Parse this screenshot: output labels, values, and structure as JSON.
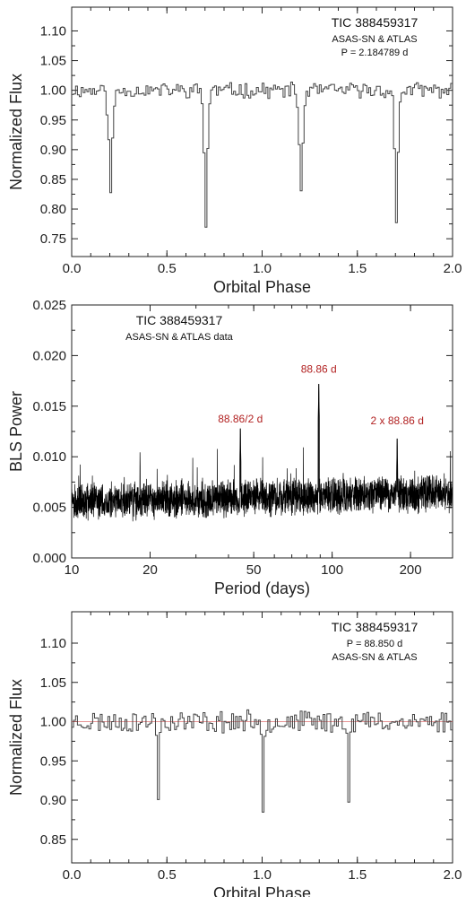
{
  "chart_data": [
    {
      "type": "line",
      "style": "step",
      "title": "TIC 388459317",
      "subtitle_lines": [
        "ASAS-SN & ATLAS",
        "P = 2.184789 d"
      ],
      "xlabel": "Orbital Phase",
      "ylabel": "Normalized Flux",
      "xlim": [
        0.0,
        2.0
      ],
      "ylim": [
        0.72,
        1.14
      ],
      "xticks": [
        0.0,
        0.5,
        1.0,
        1.5,
        2.0
      ],
      "xtick_labels": [
        "0.0",
        "0.5",
        "1.0",
        "1.5",
        "2.0"
      ],
      "yticks": [
        0.75,
        0.8,
        0.85,
        0.9,
        0.95,
        1.0,
        1.05,
        1.1
      ],
      "ytick_labels": [
        "0.75",
        "0.80",
        "0.85",
        "0.90",
        "0.95",
        "1.00",
        "1.05",
        "1.10"
      ],
      "grid": false,
      "line_color": "#444444",
      "baseline": 1.0,
      "noise": 0.011,
      "bins": 200,
      "seed": 11,
      "eclipses": [
        {
          "phase": 0.205,
          "depth": 0.83,
          "width": 0.03
        },
        {
          "phase": 0.705,
          "depth": 0.77,
          "width": 0.025
        },
        {
          "phase": 1.205,
          "depth": 0.83,
          "width": 0.03
        },
        {
          "phase": 1.705,
          "depth": 0.77,
          "width": 0.025
        }
      ],
      "annotations": []
    },
    {
      "type": "line",
      "style": "periodogram",
      "title": "TIC 388459317",
      "subtitle_lines": [
        "ASAS-SN & ATLAS data"
      ],
      "xlabel": "Period (days)",
      "ylabel": "BLS Power",
      "xscale": "log",
      "xlim": [
        10,
        290
      ],
      "ylim": [
        0.0,
        0.025
      ],
      "xticks": [
        10,
        20,
        50,
        100,
        200
      ],
      "xtick_labels": [
        "10",
        "20",
        "50",
        "100",
        "200"
      ],
      "yticks": [
        0.0,
        0.005,
        0.01,
        0.015,
        0.02,
        0.025
      ],
      "ytick_labels": [
        "0.000",
        "0.005",
        "0.010",
        "0.015",
        "0.020",
        "0.025"
      ],
      "grid": false,
      "line_color": "#000000",
      "seed": 5,
      "samples": 2600,
      "peaks": [
        {
          "period": 44.43,
          "power": 0.0128
        },
        {
          "period": 88.86,
          "power": 0.0172
        },
        {
          "period": 177.7,
          "power": 0.0118
        }
      ],
      "annotations": [
        {
          "text": "88.86/2 d",
          "period": 44.43,
          "power": 0.0134
        },
        {
          "text": "88.86 d",
          "period": 88.86,
          "power": 0.0183
        },
        {
          "text": "2 x 88.86 d",
          "period": 177.7,
          "power": 0.0132
        }
      ],
      "annotation_color": "#b22222"
    },
    {
      "type": "line",
      "style": "step",
      "title": "TIC 388459317",
      "subtitle_lines": [
        "P = 88.850 d",
        "ASAS-SN & ATLAS"
      ],
      "xlabel": "Orbital Phase",
      "ylabel": "Normalized Flux",
      "xlim": [
        0.0,
        2.0
      ],
      "ylim": [
        0.82,
        1.14
      ],
      "xticks": [
        0.0,
        0.5,
        1.0,
        1.5,
        2.0
      ],
      "xtick_labels": [
        "0.0",
        "0.5",
        "1.0",
        "1.5",
        "2.0"
      ],
      "yticks": [
        0.85,
        0.9,
        0.95,
        1.0,
        1.05,
        1.1
      ],
      "ytick_labels": [
        "0.85",
        "0.90",
        "0.95",
        "1.00",
        "1.05",
        "1.10"
      ],
      "grid": false,
      "line_color": "#444444",
      "baseline": 1.0,
      "noise": 0.012,
      "bins": 200,
      "seed": 23,
      "reference_line": {
        "y": 1.0,
        "color": "#e07070"
      },
      "eclipses": [
        {
          "phase": 0.455,
          "depth": 0.897,
          "width": 0.012
        },
        {
          "phase": 1.005,
          "depth": 0.885,
          "width": 0.012
        },
        {
          "phase": 1.455,
          "depth": 0.897,
          "width": 0.012
        }
      ],
      "annotations": []
    }
  ]
}
